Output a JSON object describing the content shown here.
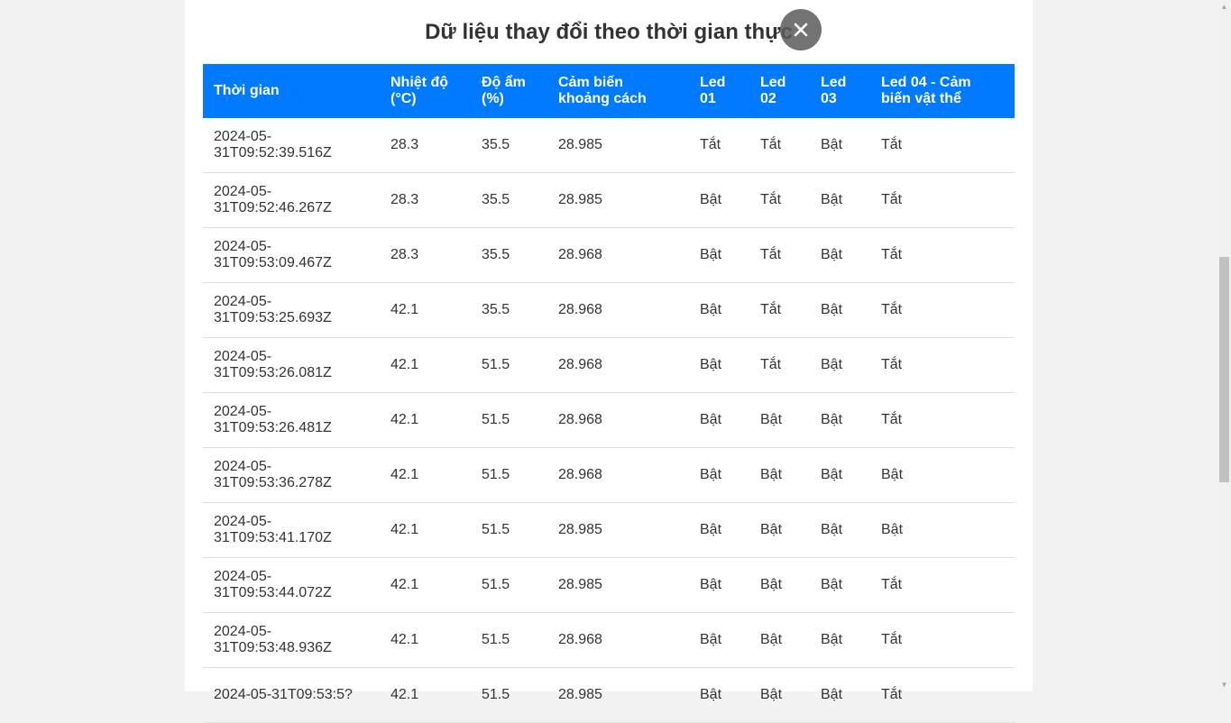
{
  "page": {
    "title": "Dữ liệu thay đổi theo thời gian thực"
  },
  "table": {
    "headers": [
      "Thời gian",
      "Nhiệt độ (°C)",
      "Độ ẩm (%)",
      "Cảm biến khoảng cách",
      "Led 01",
      "Led 02",
      "Led 03",
      "Led 04 - Cảm biến vật thể"
    ],
    "rows": [
      [
        "2024-05-31T09:52:39.516Z",
        "28.3",
        "35.5",
        "28.985",
        "Tắt",
        "Tắt",
        "Bật",
        "Tắt"
      ],
      [
        "2024-05-31T09:52:46.267Z",
        "28.3",
        "35.5",
        "28.985",
        "Bật",
        "Tắt",
        "Bật",
        "Tắt"
      ],
      [
        "2024-05-31T09:53:09.467Z",
        "28.3",
        "35.5",
        "28.968",
        "Bật",
        "Tắt",
        "Bật",
        "Tắt"
      ],
      [
        "2024-05-31T09:53:25.693Z",
        "42.1",
        "35.5",
        "28.968",
        "Bật",
        "Tắt",
        "Bật",
        "Tắt"
      ],
      [
        "2024-05-31T09:53:26.081Z",
        "42.1",
        "51.5",
        "28.968",
        "Bật",
        "Tắt",
        "Bật",
        "Tắt"
      ],
      [
        "2024-05-31T09:53:26.481Z",
        "42.1",
        "51.5",
        "28.968",
        "Bật",
        "Bật",
        "Bật",
        "Tắt"
      ],
      [
        "2024-05-31T09:53:36.278Z",
        "42.1",
        "51.5",
        "28.968",
        "Bật",
        "Bật",
        "Bật",
        "Bật"
      ],
      [
        "2024-05-31T09:53:41.170Z",
        "42.1",
        "51.5",
        "28.985",
        "Bật",
        "Bật",
        "Bật",
        "Bật"
      ],
      [
        "2024-05-31T09:53:44.072Z",
        "42.1",
        "51.5",
        "28.985",
        "Bật",
        "Bật",
        "Bật",
        "Tắt"
      ],
      [
        "2024-05-31T09:53:48.936Z",
        "42.1",
        "51.5",
        "28.968",
        "Bật",
        "Bật",
        "Bật",
        "Tắt"
      ],
      [
        "2024-05-31T09:53:5?",
        "42.1",
        "51.5",
        "28.985",
        "Bật",
        "Bật",
        "Bật",
        "Tắt"
      ]
    ]
  },
  "icons": {
    "close": "close-icon"
  },
  "colors": {
    "header_bg": "#007bff",
    "header_text": "#ffffff",
    "page_bg": "#f2f2f2"
  }
}
